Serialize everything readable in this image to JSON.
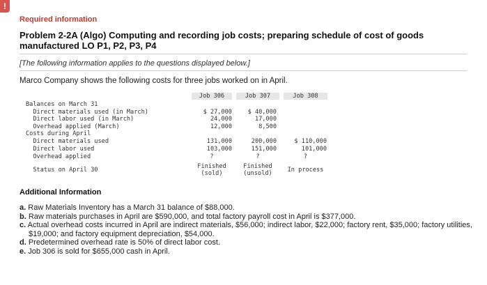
{
  "alert": "!",
  "required_title": "Required information",
  "problem_title": "Problem 2-2A (Algo) Computing and recording job costs; preparing schedule of cost of goods manufactured LO P1, P2, P3, P4",
  "note": "[The following information applies to the questions displayed below.]",
  "intro": "Marco Company shows the following costs for three jobs worked on in April.",
  "table": {
    "headers": [
      "Job 306",
      "Job 307",
      "Job 308"
    ],
    "rows": [
      {
        "label": "Balances on March 31",
        "values": [
          "",
          "",
          ""
        ]
      },
      {
        "label": "  Direct materials used (in March)",
        "values": [
          "$ 27,000",
          "$ 40,000",
          ""
        ]
      },
      {
        "label": "  Direct labor used (in March)",
        "values": [
          "24,000",
          "17,000",
          ""
        ]
      },
      {
        "label": "  Overhead applied (March)",
        "values": [
          "12,000",
          "8,500",
          ""
        ]
      },
      {
        "label": "Costs during April",
        "values": [
          "",
          "",
          ""
        ]
      },
      {
        "label": "  Direct materials used",
        "values": [
          "131,000",
          "200,000",
          "$ 110,000"
        ]
      },
      {
        "label": "  Direct labor used",
        "values": [
          "103,000",
          "151,000",
          "101,000"
        ]
      },
      {
        "label": "  Overhead applied",
        "values": [
          "?",
          "?",
          "?"
        ]
      }
    ],
    "status": {
      "label": "  Status on April 30",
      "values": [
        [
          "Finished",
          "(sold)"
        ],
        [
          "Finished",
          "(unsold)"
        ],
        [
          "In process",
          ""
        ]
      ]
    }
  },
  "additional_title": "Additional Information",
  "additional": [
    {
      "letter": "a.",
      "text": "Raw Materials Inventory has a March 31 balance of $88,000."
    },
    {
      "letter": "b.",
      "text": "Raw materials purchases in April are $590,000, and total factory payroll cost in April is $377,000."
    },
    {
      "letter": "c.",
      "text": "Actual overhead costs incurred in April are indirect materials, $56,000; indirect labor, $22,000; factory rent, $35,000; factory utilities, $19,000; and factory equipment depreciation, $54,000."
    },
    {
      "letter": "d.",
      "text": "Predetermined overhead rate is 50% of direct labor cost."
    },
    {
      "letter": "e.",
      "text": "Job 306 is sold for $655,000 cash in April."
    }
  ]
}
